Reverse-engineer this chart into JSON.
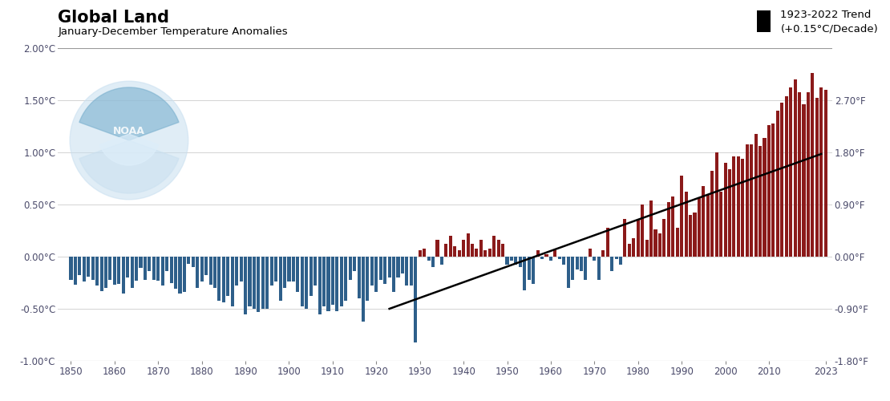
{
  "title": "Global Land",
  "subtitle": "January-December Temperature Anomalies",
  "legend_label": "1923-2022 Trend\n(+0.15°C/Decade)",
  "trend_start_year": 1923,
  "trend_end_year": 2022,
  "trend_slope": 0.015,
  "trend_intercept_at_1923": -0.5,
  "ylim_c": [
    -1.0,
    2.0
  ],
  "xlim": [
    1847,
    2024.5
  ],
  "yticks_c": [
    -1.0,
    -0.5,
    0.0,
    0.5,
    1.0,
    1.5,
    2.0
  ],
  "ytick_labels_c": [
    "-1.00°C",
    "-0.50°C",
    "0.00°C",
    "0.50°C",
    "1.00°C",
    "1.50°C",
    "2.00°C"
  ],
  "f_tick_positions_c": [
    -1.0,
    -0.5,
    0.0,
    0.5,
    1.0,
    1.5
  ],
  "ytick_labels_f": [
    "-1.80°F",
    "-0.90°F",
    "0.00°F",
    "0.90°F",
    "1.80°F",
    "2.70°F"
  ],
  "xticks": [
    1850,
    1860,
    1870,
    1880,
    1890,
    1900,
    1910,
    1920,
    1930,
    1940,
    1950,
    1960,
    1970,
    1980,
    1990,
    2000,
    2010,
    2023
  ],
  "color_positive": "#8B1A1A",
  "color_negative": "#2E5F8A",
  "background_color": "#ffffff",
  "years": [
    1850,
    1851,
    1852,
    1853,
    1854,
    1855,
    1856,
    1857,
    1858,
    1859,
    1860,
    1861,
    1862,
    1863,
    1864,
    1865,
    1866,
    1867,
    1868,
    1869,
    1870,
    1871,
    1872,
    1873,
    1874,
    1875,
    1876,
    1877,
    1878,
    1879,
    1880,
    1881,
    1882,
    1883,
    1884,
    1885,
    1886,
    1887,
    1888,
    1889,
    1890,
    1891,
    1892,
    1893,
    1894,
    1895,
    1896,
    1897,
    1898,
    1899,
    1900,
    1901,
    1902,
    1903,
    1904,
    1905,
    1906,
    1907,
    1908,
    1909,
    1910,
    1911,
    1912,
    1913,
    1914,
    1915,
    1916,
    1917,
    1918,
    1919,
    1920,
    1921,
    1922,
    1923,
    1924,
    1925,
    1926,
    1927,
    1928,
    1929,
    1930,
    1931,
    1932,
    1933,
    1934,
    1935,
    1936,
    1937,
    1938,
    1939,
    1940,
    1941,
    1942,
    1943,
    1944,
    1945,
    1946,
    1947,
    1948,
    1949,
    1950,
    1951,
    1952,
    1953,
    1954,
    1955,
    1956,
    1957,
    1958,
    1959,
    1960,
    1961,
    1962,
    1963,
    1964,
    1965,
    1966,
    1967,
    1968,
    1969,
    1970,
    1971,
    1972,
    1973,
    1974,
    1975,
    1976,
    1977,
    1978,
    1979,
    1980,
    1981,
    1982,
    1983,
    1984,
    1985,
    1986,
    1987,
    1988,
    1989,
    1990,
    1991,
    1992,
    1993,
    1994,
    1995,
    1996,
    1997,
    1998,
    1999,
    2000,
    2001,
    2002,
    2003,
    2004,
    2005,
    2006,
    2007,
    2008,
    2009,
    2010,
    2011,
    2012,
    2013,
    2014,
    2015,
    2016,
    2017,
    2018,
    2019,
    2020,
    2021,
    2022,
    2023
  ],
  "anomalies": [
    -0.22,
    -0.27,
    -0.18,
    -0.24,
    -0.19,
    -0.22,
    -0.28,
    -0.33,
    -0.3,
    -0.22,
    -0.27,
    -0.26,
    -0.35,
    -0.2,
    -0.3,
    -0.23,
    -0.11,
    -0.22,
    -0.14,
    -0.22,
    -0.23,
    -0.28,
    -0.14,
    -0.25,
    -0.31,
    -0.35,
    -0.34,
    -0.07,
    -0.1,
    -0.3,
    -0.24,
    -0.18,
    -0.27,
    -0.3,
    -0.42,
    -0.44,
    -0.38,
    -0.48,
    -0.28,
    -0.24,
    -0.55,
    -0.48,
    -0.5,
    -0.53,
    -0.5,
    -0.5,
    -0.28,
    -0.24,
    -0.42,
    -0.3,
    -0.24,
    -0.24,
    -0.34,
    -0.48,
    -0.5,
    -0.38,
    -0.28,
    -0.55,
    -0.48,
    -0.52,
    -0.46,
    -0.52,
    -0.48,
    -0.42,
    -0.22,
    -0.14,
    -0.4,
    -0.62,
    -0.42,
    -0.28,
    -0.34,
    -0.22,
    -0.26,
    -0.2,
    -0.34,
    -0.2,
    -0.16,
    -0.28,
    -0.28,
    -0.82,
    0.06,
    0.08,
    -0.04,
    -0.1,
    0.16,
    -0.08,
    0.12,
    0.2,
    0.1,
    0.06,
    0.16,
    0.22,
    0.12,
    0.08,
    0.16,
    0.06,
    0.08,
    0.2,
    0.16,
    0.12,
    -0.08,
    -0.04,
    -0.08,
    -0.1,
    -0.32,
    -0.22,
    -0.26,
    0.06,
    -0.02,
    0.02,
    -0.04,
    0.06,
    -0.02,
    -0.08,
    -0.3,
    -0.22,
    -0.12,
    -0.14,
    -0.22,
    0.08,
    -0.04,
    -0.22,
    0.06,
    0.28,
    -0.14,
    -0.02,
    -0.08,
    0.36,
    0.12,
    0.18,
    0.36,
    0.5,
    0.16,
    0.54,
    0.26,
    0.22,
    0.36,
    0.52,
    0.58,
    0.28,
    0.78,
    0.62,
    0.4,
    0.42,
    0.56,
    0.68,
    0.6,
    0.82,
    1.0,
    0.62,
    0.9,
    0.84,
    0.96,
    0.96,
    0.94,
    1.08,
    1.08,
    1.18,
    1.06,
    1.14,
    1.26,
    1.28,
    1.4,
    1.48,
    1.54,
    1.62,
    1.7,
    1.58,
    1.46,
    1.58,
    1.76,
    1.52,
    1.62,
    1.6
  ]
}
